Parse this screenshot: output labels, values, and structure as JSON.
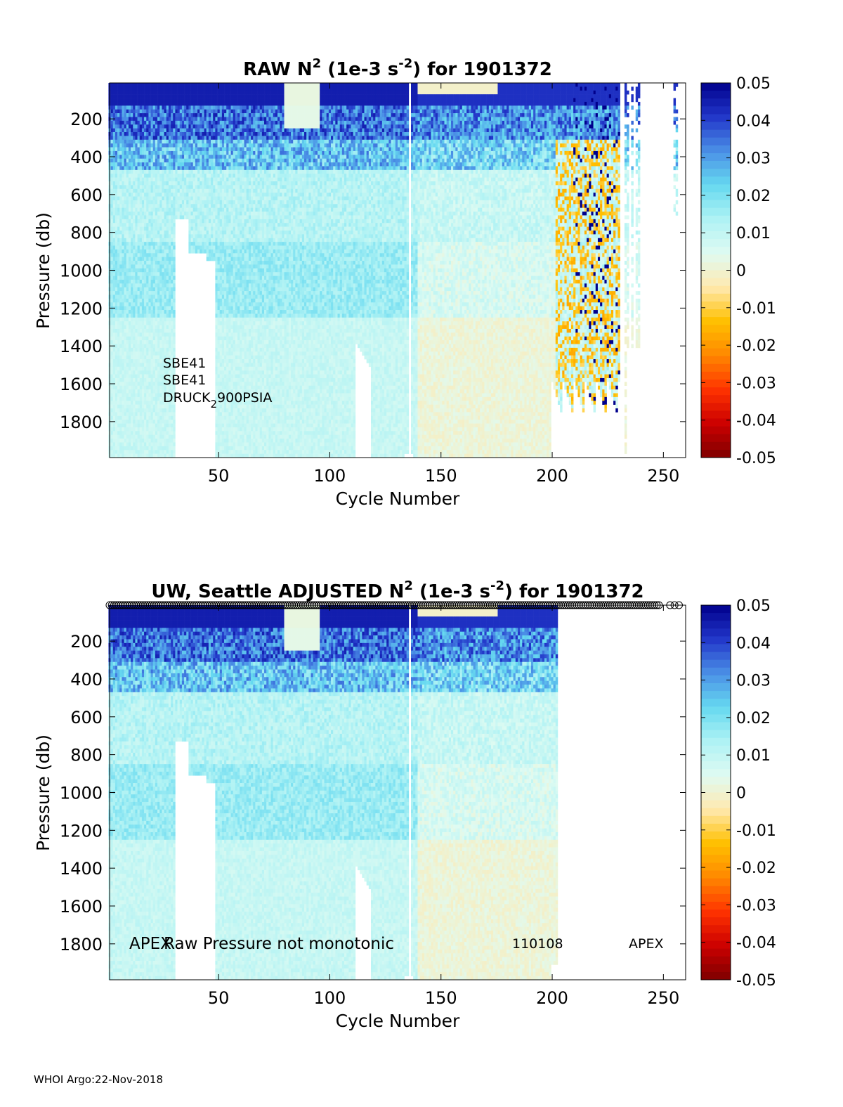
{
  "footer": "WHOI Argo:22-Nov-2018",
  "chart_data": [
    {
      "type": "heatmap",
      "title_parts": {
        "pre": "RAW N",
        "sup1": "2",
        "mid": " (1e-3 s",
        "sup2": "-2",
        "post": ") for 1901372"
      },
      "xlabel": "Cycle Number",
      "ylabel": "Pressure (db)",
      "xlim": [
        1,
        260
      ],
      "ylim": [
        1990,
        10
      ],
      "y_reversed": true,
      "xticks": [
        50,
        100,
        150,
        200,
        250
      ],
      "yticks": [
        200,
        400,
        600,
        800,
        1000,
        1200,
        1400,
        1600,
        1800
      ],
      "clim": [
        -0.05,
        0.05
      ],
      "colorbar_ticks": [
        "0.05",
        "0.04",
        "0.03",
        "0.02",
        "0.01",
        "0",
        "-0.01",
        "-0.02",
        "-0.03",
        "-0.04",
        "-0.05"
      ],
      "colormap": [
        "#7f0000",
        "#cc0000",
        "#ff3300",
        "#ff8800",
        "#ffc000",
        "#ffe9b0",
        "#dffbf2",
        "#aef2f4",
        "#66d9f0",
        "#4a8fe6",
        "#2236c9",
        "#00008c"
      ],
      "annotations": [
        "SBE41",
        "SBE41",
        "DRUCK",
        "2",
        "900PSIA"
      ],
      "max_cycle": 259,
      "grid": false
    },
    {
      "type": "heatmap",
      "title_parts": {
        "pre": "UW, Seattle  ADJUSTED N",
        "sup1": "2",
        "mid": " (1e-3 s",
        "sup2": "-2",
        "post": ") for 1901372"
      },
      "xlabel": "Cycle Number",
      "ylabel": "Pressure (db)",
      "xlim": [
        1,
        260
      ],
      "ylim": [
        1990,
        10
      ],
      "y_reversed": true,
      "xticks": [
        50,
        100,
        150,
        200,
        250
      ],
      "yticks": [
        200,
        400,
        600,
        800,
        1000,
        1200,
        1400,
        1600,
        1800
      ],
      "clim": [
        -0.05,
        0.05
      ],
      "colorbar_ticks": [
        "0.05",
        "0.04",
        "0.03",
        "0.02",
        "0.01",
        "0",
        "-0.01",
        "-0.02",
        "-0.03",
        "-0.04",
        "-0.05"
      ],
      "colormap": [
        "#7f0000",
        "#cc0000",
        "#ff3300",
        "#ff8800",
        "#ffc000",
        "#ffe9b0",
        "#dffbf2",
        "#aef2f4",
        "#66d9f0",
        "#4a8fe6",
        "#2236c9",
        "#00008c"
      ],
      "annotations": [
        "APEX",
        "Raw Pressure not monotonic",
        "110108",
        "APEX"
      ],
      "marker_cycles_start": 1,
      "marker_cycles_end": 248,
      "marker_cycles_extra": [
        253,
        255,
        257
      ],
      "max_cycle": 202,
      "grid": false
    }
  ]
}
